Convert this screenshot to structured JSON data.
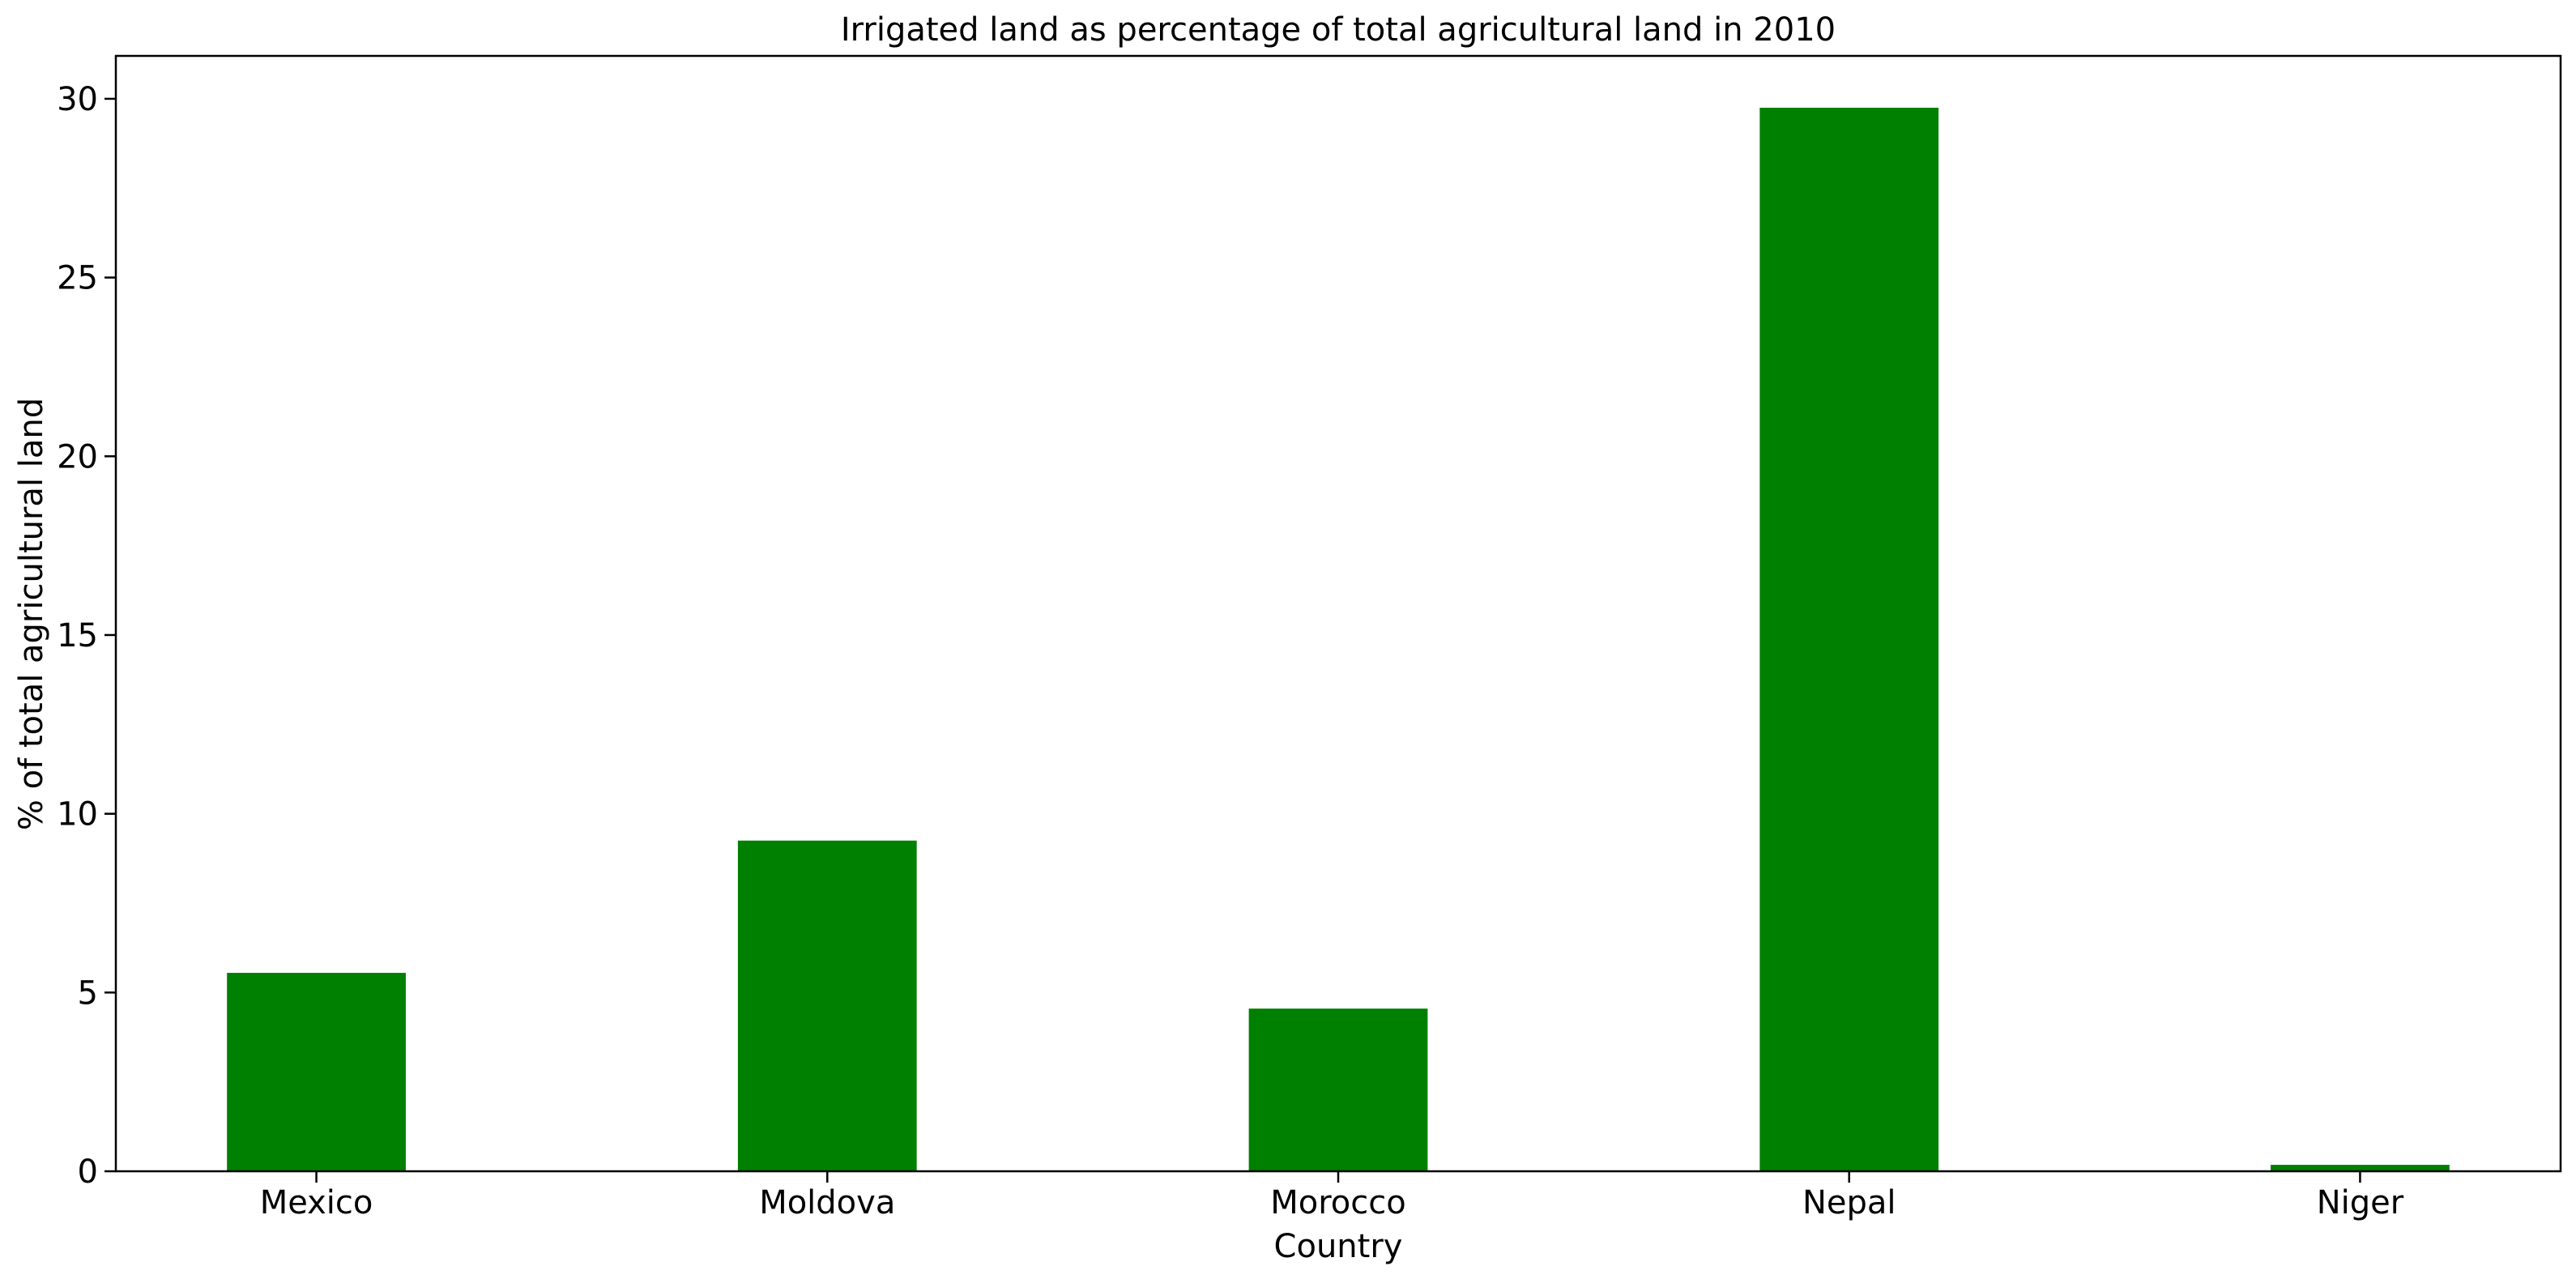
{
  "chart_data": {
    "type": "bar",
    "title": "Irrigated land as percentage of total agricultural land in 2010",
    "xlabel": "Country",
    "ylabel": "% of total agricultural land",
    "categories": [
      "Mexico",
      "Moldova",
      "Morocco",
      "Nepal",
      "Niger"
    ],
    "values": [
      5.55,
      9.25,
      4.55,
      29.75,
      0.18
    ],
    "ylim": [
      0,
      31.2
    ],
    "yticks": [
      0,
      5,
      10,
      15,
      20,
      25,
      30
    ],
    "bar_color": "#008000",
    "grid": false,
    "legend": "none"
  }
}
